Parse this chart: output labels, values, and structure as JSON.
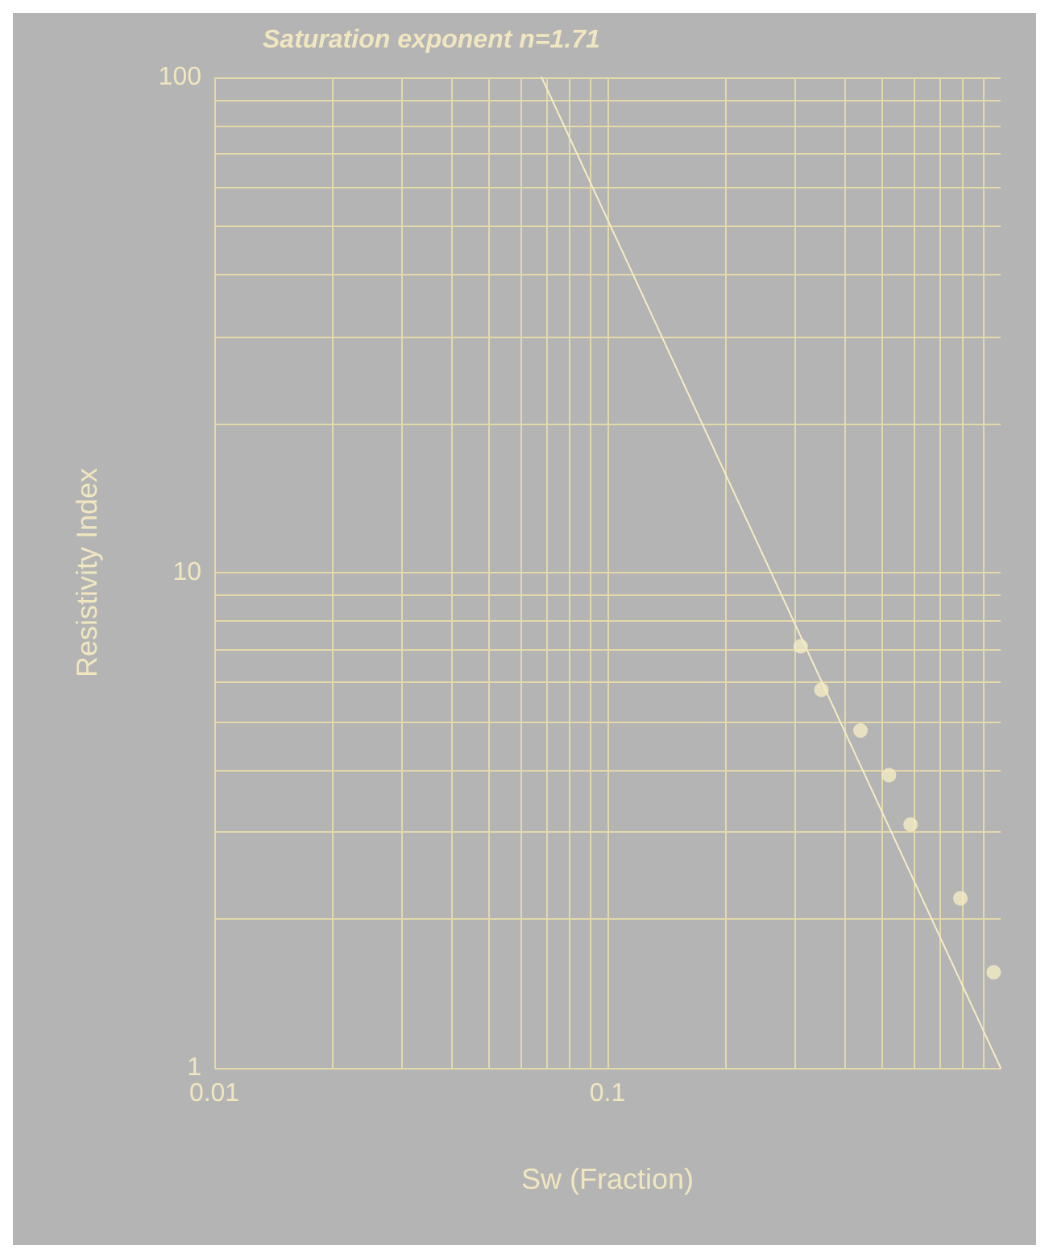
{
  "chart_data": {
    "type": "scatter",
    "title": "Saturation exponent n=1.71",
    "xlabel": "Sw (Fraction)",
    "ylabel": "Resistivity Index",
    "log": "xy",
    "grid": true,
    "marker": "circle",
    "xlim": [
      0.01,
      1
    ],
    "ylim": [
      1,
      100
    ],
    "xticks": [
      0.01,
      {
        "value": 0.02,
        "label": null
      },
      {
        "value": 0.03,
        "label": null
      },
      {
        "value": 0.04,
        "label": null
      },
      {
        "value": 0.05,
        "label": null
      },
      {
        "value": 0.06,
        "label": null
      },
      {
        "value": 0.07,
        "label": null
      },
      {
        "value": 0.08,
        "label": null
      },
      {
        "value": 0.09,
        "label": null
      },
      0.1,
      {
        "value": 0.2,
        "label": null
      },
      {
        "value": 0.3,
        "label": null
      },
      {
        "value": 0.4,
        "label": null
      },
      {
        "value": 0.5,
        "label": null
      },
      {
        "value": 0.6,
        "label": null
      },
      {
        "value": 0.7,
        "label": null
      },
      {
        "value": 0.8,
        "label": null
      },
      {
        "value": 0.9,
        "label": null
      }
    ],
    "yticks": [
      1,
      {
        "value": 2,
        "label": null
      },
      {
        "value": 3,
        "label": null
      },
      {
        "value": 4,
        "label": null
      },
      {
        "value": 5,
        "label": null
      },
      {
        "value": 6,
        "label": null
      },
      {
        "value": 7,
        "label": null
      },
      {
        "value": 8,
        "label": null
      },
      {
        "value": 9,
        "label": null
      },
      10,
      {
        "value": 20,
        "label": null
      },
      {
        "value": 30,
        "label": null
      },
      {
        "value": 40,
        "label": null
      },
      {
        "value": 50,
        "label": null
      },
      {
        "value": 60,
        "label": null
      },
      {
        "value": 70,
        "label": null
      },
      {
        "value": 80,
        "label": null
      },
      {
        "value": 90,
        "label": null
      },
      100
    ],
    "series": [
      {
        "color": "#f5ecc4",
        "x": [
          0.31,
          0.35,
          0.44,
          0.52,
          0.59,
          0.79,
          0.96
        ],
        "values": [
          7.1,
          5.8,
          4.8,
          3.9,
          3.1,
          2.2,
          1.56
        ]
      },
      {
        "type": "line",
        "color": "#f5ecc4",
        "marker": "none",
        "line_style": "solid",
        "x": [
          0.068,
          1
        ],
        "values": [
          100,
          1
        ]
      }
    ]
  }
}
